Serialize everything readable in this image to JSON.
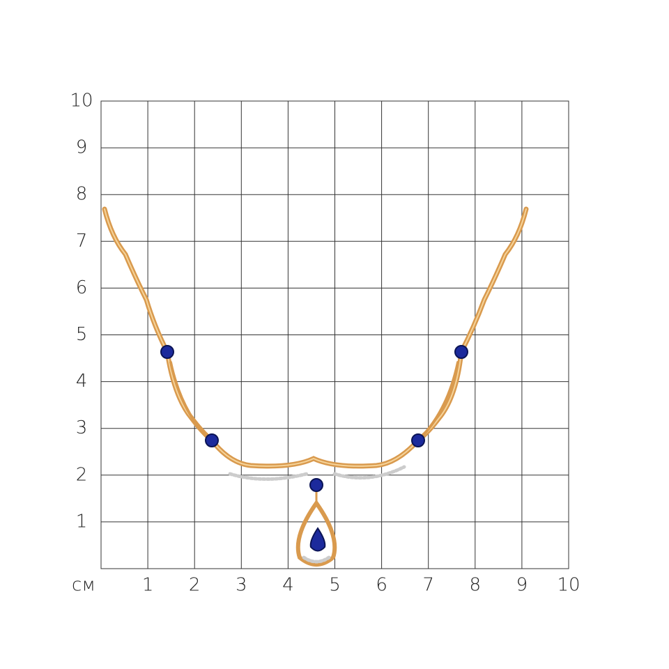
{
  "grid": {
    "unit": "см",
    "x_labels": [
      1,
      2,
      3,
      4,
      5,
      6,
      7,
      8,
      9,
      10
    ],
    "y_labels": [
      1,
      2,
      3,
      4,
      5,
      6,
      7,
      8,
      9,
      10
    ]
  }
}
